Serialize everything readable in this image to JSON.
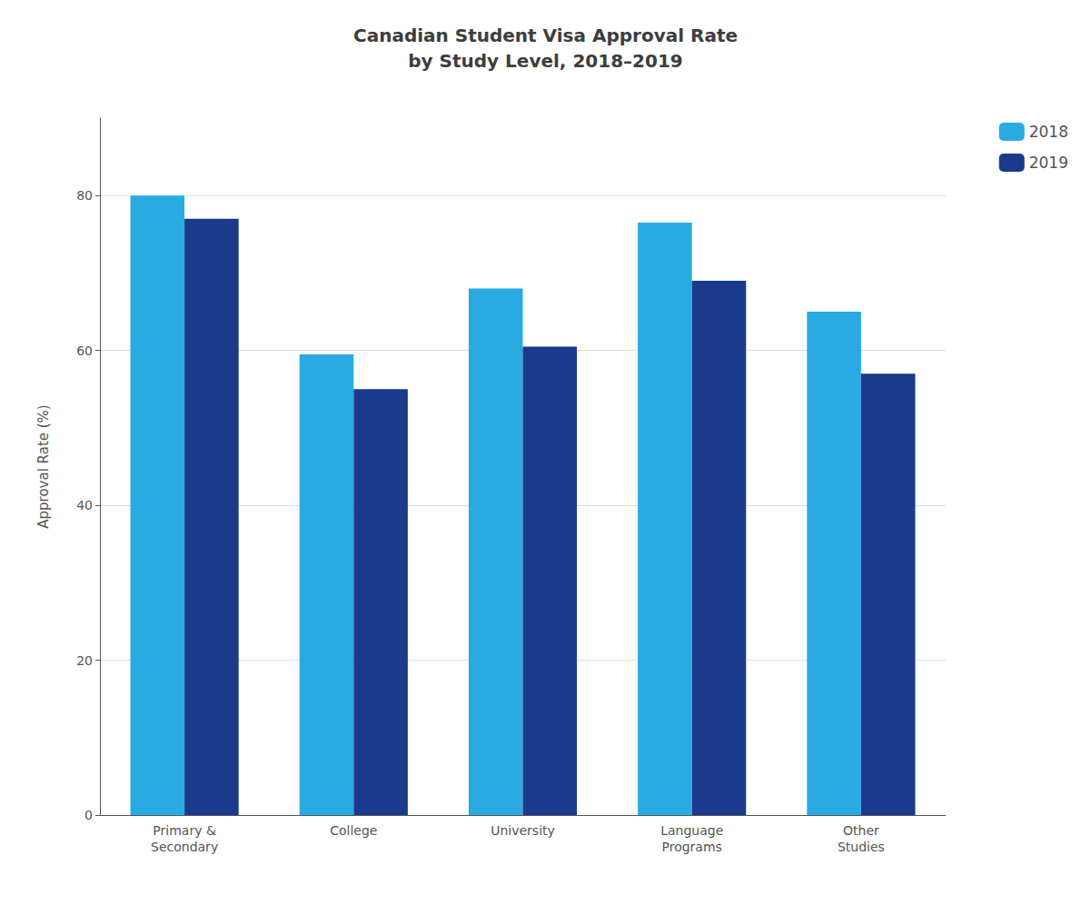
{
  "chart_data": {
    "type": "bar",
    "title": "Canadian Student Visa Approval Rate\nby Study Level, 2018–2019",
    "ylabel": "Approval Rate (%)",
    "categories": [
      "Primary &\nSecondary",
      "College",
      "University",
      "Language\nPrograms",
      "Other\nStudies"
    ],
    "series": [
      {
        "name": "2018",
        "color": "#29ABE2",
        "values": [
          80,
          59.5,
          68,
          76.5,
          65
        ]
      },
      {
        "name": "2019",
        "color": "#1B3A8C",
        "values": [
          77,
          55,
          60.5,
          69,
          57
        ]
      }
    ],
    "ylim": [
      0,
      90
    ],
    "yticks": [
      0,
      20,
      40,
      60,
      80
    ],
    "grid": true,
    "legend": "upper right"
  }
}
